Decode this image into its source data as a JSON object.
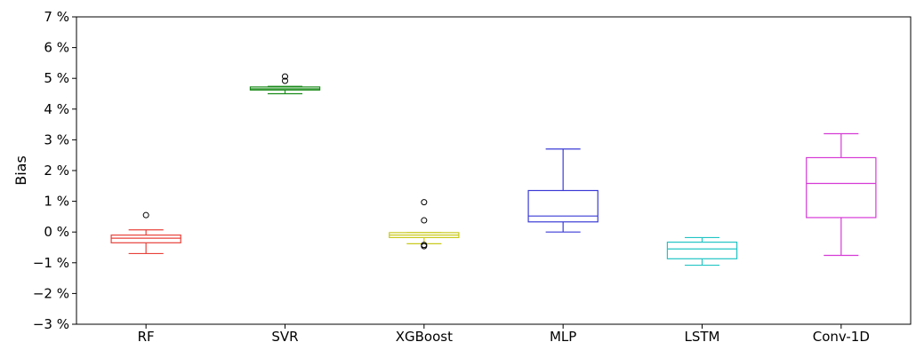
{
  "chart_data": {
    "type": "box",
    "title": "",
    "xlabel": "",
    "ylabel": "Bias",
    "ylim": [
      -3,
      7
    ],
    "y_ticks": [
      -3,
      -2,
      -1,
      0,
      1,
      2,
      3,
      4,
      5,
      6,
      7
    ],
    "y_tick_labels": [
      "−3 %",
      "−2 %",
      "−1 %",
      "0 %",
      "1 %",
      "2 %",
      "3 %",
      "4 %",
      "5 %",
      "6 %",
      "7 %"
    ],
    "categories": [
      "RF",
      "SVR",
      "XGBoost",
      "MLP",
      "LSTM",
      "Conv-1D"
    ],
    "boxes": [
      {
        "category": "RF",
        "whisker_low": -0.7,
        "q1": -0.35,
        "median": -0.2,
        "q3": -0.1,
        "whisker_high": 0.07,
        "outliers": [
          0.55
        ],
        "color": "#e8413a"
      },
      {
        "category": "SVR",
        "whisker_low": 4.5,
        "q1": 4.62,
        "median": 4.66,
        "q3": 4.72,
        "whisker_high": 4.74,
        "outliers": [
          4.92,
          5.06
        ],
        "color": "#1a8a1a"
      },
      {
        "category": "XGBoost",
        "whisker_low": -0.38,
        "q1": -0.18,
        "median": -0.1,
        "q3": -0.02,
        "whisker_high": -0.02,
        "outliers": [
          0.97,
          0.38,
          -0.42,
          -0.46
        ],
        "color": "#c9c91e"
      },
      {
        "category": "MLP",
        "whisker_low": 0.0,
        "q1": 0.33,
        "median": 0.52,
        "q3": 1.35,
        "whisker_high": 2.7,
        "outliers": [],
        "color": "#3a3ad6"
      },
      {
        "category": "LSTM",
        "whisker_low": -1.08,
        "q1": -0.87,
        "median": -0.55,
        "q3": -0.33,
        "whisker_high": -0.18,
        "outliers": [],
        "color": "#22c4c4"
      },
      {
        "category": "Conv-1D",
        "whisker_low": -0.76,
        "q1": 0.47,
        "median": 1.58,
        "q3": 2.42,
        "whisker_high": 3.2,
        "outliers": [],
        "color": "#d63ad6"
      }
    ],
    "grid": false,
    "legend": "none"
  }
}
